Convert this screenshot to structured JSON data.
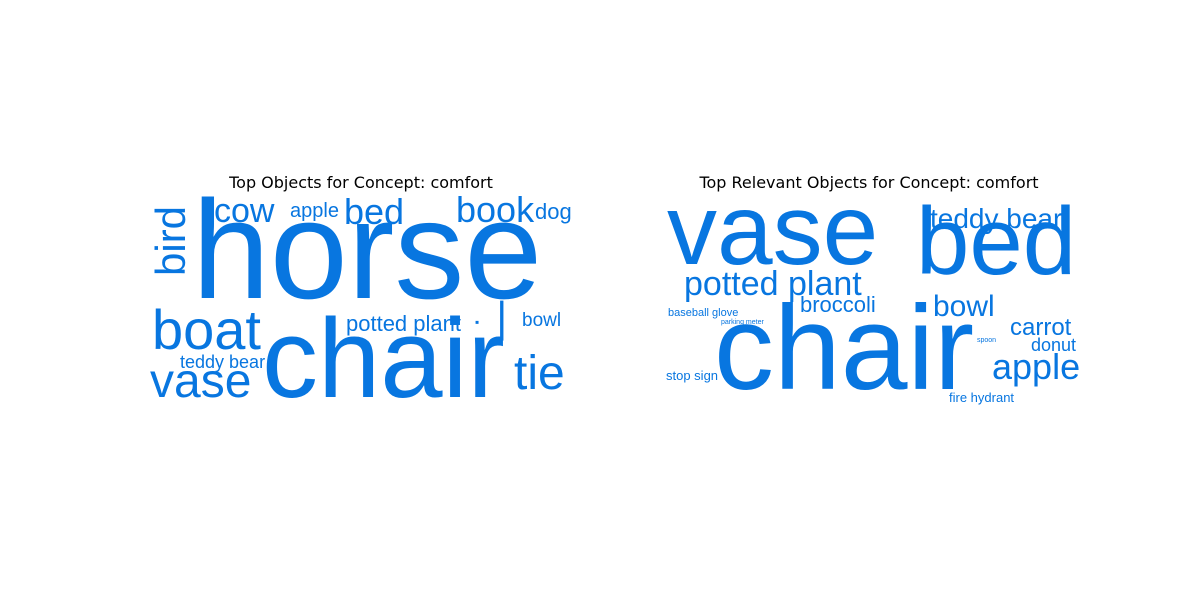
{
  "colors": {
    "word": "#0876e0",
    "background": "#ffffff",
    "title": "#000000"
  },
  "panels": [
    {
      "title": "Top Objects for Concept: comfort",
      "words": [
        {
          "text": "horse"
        },
        {
          "text": "chair"
        },
        {
          "text": "boat"
        },
        {
          "text": "vase"
        },
        {
          "text": "bird"
        },
        {
          "text": "cow"
        },
        {
          "text": "apple"
        },
        {
          "text": "bed"
        },
        {
          "text": "book"
        },
        {
          "text": "dog"
        },
        {
          "text": "potted plant"
        },
        {
          "text": "bowl"
        },
        {
          "text": "teddy bear"
        },
        {
          "text": "tie"
        },
        {
          "text": "❘"
        },
        {
          "text": "▪"
        }
      ]
    },
    {
      "title": "Top Relevant Objects for Concept: comfort",
      "words": [
        {
          "text": "vase"
        },
        {
          "text": "bed"
        },
        {
          "text": "chair"
        },
        {
          "text": "teddy bear"
        },
        {
          "text": "potted plant"
        },
        {
          "text": "broccoli"
        },
        {
          "text": "bowl"
        },
        {
          "text": "apple"
        },
        {
          "text": "carrot"
        },
        {
          "text": "donut"
        },
        {
          "text": "baseball glove"
        },
        {
          "text": "parking meter"
        },
        {
          "text": "spoon"
        },
        {
          "text": "stop sign"
        },
        {
          "text": "fire hydrant"
        },
        {
          "text": "▪"
        }
      ]
    }
  ]
}
